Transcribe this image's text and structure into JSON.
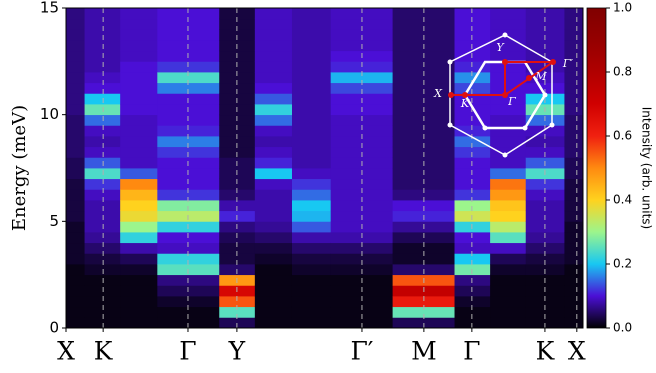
{
  "chart_data": {
    "type": "heatmap",
    "xlabel": null,
    "ylabel": "Energy (meV)",
    "colorbar_label": "Intensity (arb. units)",
    "xlim": [
      0,
      16.7
    ],
    "ylim": [
      0,
      15
    ],
    "xticks": [
      {
        "value": 0,
        "label": "X"
      },
      {
        "value": 1.2,
        "label": "K"
      },
      {
        "value": 3.94,
        "label": "Γ"
      },
      {
        "value": 5.52,
        "label": "Y"
      },
      {
        "value": 9.56,
        "label": "Γ′"
      },
      {
        "value": 11.56,
        "label": "M"
      },
      {
        "value": 13.11,
        "label": "Γ"
      },
      {
        "value": 15.47,
        "label": "K"
      },
      {
        "value": 16.5,
        "label": "X"
      }
    ],
    "yticks": [
      0,
      5,
      10,
      15
    ],
    "grid": true,
    "clim": [
      0,
      1
    ],
    "cticks": [
      {
        "value": 0,
        "label": "0.0"
      },
      0.2,
      0.4,
      0.6,
      0.8,
      {
        "value": 1,
        "label": "1.0"
      }
    ],
    "colorscale": [
      "#000000",
      "#4b0fd6",
      "#18c8f2",
      "#9cf58c",
      "#ffd21e",
      "#ff8a10",
      "#f02010",
      "#d00000",
      "#b00000",
      "#950000",
      "#800000"
    ],
    "xbins": [
      0,
      0.6,
      1.75,
      2.95,
      4.95,
      6.1,
      7.3,
      8.55,
      10.55,
      12.55,
      13.7,
      14.85,
      16.1,
      16.7
    ],
    "ybins": [
      0,
      0.5,
      1,
      1.5,
      2,
      2.5,
      3,
      3.5,
      4,
      4.5,
      5,
      5.5,
      6,
      6.5,
      7,
      7.5,
      8,
      8.5,
      9,
      9.5,
      10,
      10.5,
      11,
      11.5,
      12,
      12.5,
      13,
      13.5,
      14,
      14.5,
      15
    ],
    "z": [
      [
        0.01,
        0.01,
        0.01,
        0.01,
        0.01,
        0.01,
        0.02,
        0.02,
        0.02,
        0.02,
        0.03,
        0.03,
        0.03,
        0.03,
        0.04,
        0.04,
        0.05,
        0.05,
        0.05,
        0.05,
        0.06,
        0.06,
        0.06,
        0.06,
        0.06,
        0.06,
        0.06,
        0.06,
        0.06,
        0.06
      ],
      [
        0.01,
        0.01,
        0.01,
        0.01,
        0.01,
        0.02,
        0.03,
        0.05,
        0.07,
        0.08,
        0.08,
        0.08,
        0.09,
        0.12,
        0.24,
        0.14,
        0.09,
        0.08,
        0.09,
        0.15,
        0.26,
        0.2,
        0.1,
        0.09,
        0.08,
        0.08,
        0.08,
        0.08,
        0.08,
        0.08
      ],
      [
        0.01,
        0.01,
        0.01,
        0.01,
        0.01,
        0.02,
        0.04,
        0.08,
        0.22,
        0.3,
        0.38,
        0.4,
        0.44,
        0.5,
        0.14,
        0.09,
        0.09,
        0.09,
        0.09,
        0.09,
        0.1,
        0.1,
        0.1,
        0.1,
        0.1,
        0.09,
        0.09,
        0.09,
        0.09,
        0.09
      ],
      [
        0.01,
        0.01,
        0.02,
        0.04,
        0.06,
        0.25,
        0.22,
        0.09,
        0.1,
        0.22,
        0.33,
        0.28,
        0.12,
        0.1,
        0.1,
        0.1,
        0.12,
        0.16,
        0.11,
        0.1,
        0.1,
        0.1,
        0.16,
        0.24,
        0.12,
        0.1,
        0.1,
        0.1,
        0.1,
        0.1
      ],
      [
        0.04,
        0.25,
        0.55,
        0.68,
        0.48,
        0.05,
        0.03,
        0.03,
        0.04,
        0.06,
        0.11,
        0.08,
        0.05,
        0.04,
        0.04,
        0.04,
        0.03,
        0.03,
        0.03,
        0.03,
        0.03,
        0.03,
        0.03,
        0.03,
        0.03,
        0.03,
        0.03,
        0.03,
        0.03,
        0.03
      ],
      [
        0.01,
        0.01,
        0.01,
        0.01,
        0.01,
        0.01,
        0.02,
        0.03,
        0.05,
        0.07,
        0.08,
        0.08,
        0.08,
        0.09,
        0.2,
        0.11,
        0.09,
        0.08,
        0.09,
        0.15,
        0.22,
        0.14,
        0.1,
        0.09,
        0.09,
        0.09,
        0.09,
        0.09,
        0.09,
        0.09
      ],
      [
        0.01,
        0.01,
        0.01,
        0.01,
        0.01,
        0.02,
        0.03,
        0.05,
        0.08,
        0.14,
        0.19,
        0.2,
        0.15,
        0.12,
        0.09,
        0.08,
        0.08,
        0.08,
        0.08,
        0.08,
        0.08,
        0.08,
        0.08,
        0.08,
        0.08,
        0.08,
        0.08,
        0.08,
        0.08,
        0.08
      ],
      [
        0.01,
        0.01,
        0.01,
        0.01,
        0.01,
        0.02,
        0.03,
        0.05,
        0.08,
        0.09,
        0.09,
        0.09,
        0.09,
        0.09,
        0.09,
        0.09,
        0.09,
        0.09,
        0.09,
        0.09,
        0.1,
        0.1,
        0.13,
        0.19,
        0.11,
        0.1,
        0.09,
        0.09,
        0.09,
        0.09
      ],
      [
        0.04,
        0.26,
        0.62,
        0.74,
        0.55,
        0.05,
        0.02,
        0.02,
        0.04,
        0.07,
        0.11,
        0.1,
        0.06,
        0.05,
        0.05,
        0.05,
        0.05,
        0.05,
        0.05,
        0.05,
        0.05,
        0.05,
        0.05,
        0.05,
        0.05,
        0.05,
        0.05,
        0.05,
        0.05,
        0.05
      ],
      [
        0.01,
        0.01,
        0.02,
        0.04,
        0.06,
        0.27,
        0.2,
        0.09,
        0.1,
        0.22,
        0.35,
        0.3,
        0.12,
        0.1,
        0.1,
        0.1,
        0.12,
        0.15,
        0.11,
        0.1,
        0.1,
        0.1,
        0.13,
        0.17,
        0.11,
        0.1,
        0.1,
        0.1,
        0.1,
        0.1
      ],
      [
        0.01,
        0.01,
        0.01,
        0.01,
        0.01,
        0.02,
        0.04,
        0.09,
        0.25,
        0.33,
        0.4,
        0.42,
        0.48,
        0.52,
        0.15,
        0.09,
        0.09,
        0.09,
        0.09,
        0.09,
        0.1,
        0.1,
        0.1,
        0.1,
        0.1,
        0.09,
        0.09,
        0.09,
        0.09,
        0.09
      ],
      [
        0.01,
        0.01,
        0.01,
        0.01,
        0.01,
        0.02,
        0.03,
        0.05,
        0.07,
        0.08,
        0.08,
        0.08,
        0.09,
        0.12,
        0.24,
        0.14,
        0.09,
        0.08,
        0.09,
        0.15,
        0.26,
        0.2,
        0.1,
        0.09,
        0.08,
        0.08,
        0.08,
        0.08,
        0.08,
        0.08
      ],
      [
        0.01,
        0.01,
        0.01,
        0.01,
        0.01,
        0.01,
        0.02,
        0.02,
        0.02,
        0.02,
        0.03,
        0.03,
        0.03,
        0.03,
        0.04,
        0.04,
        0.05,
        0.05,
        0.05,
        0.05,
        0.06,
        0.06,
        0.06,
        0.06,
        0.06,
        0.06,
        0.06,
        0.06,
        0.06,
        0.06
      ]
    ],
    "inset_labels": [
      "X",
      "K",
      "Γ",
      "Y",
      "M",
      "Γ′"
    ]
  }
}
